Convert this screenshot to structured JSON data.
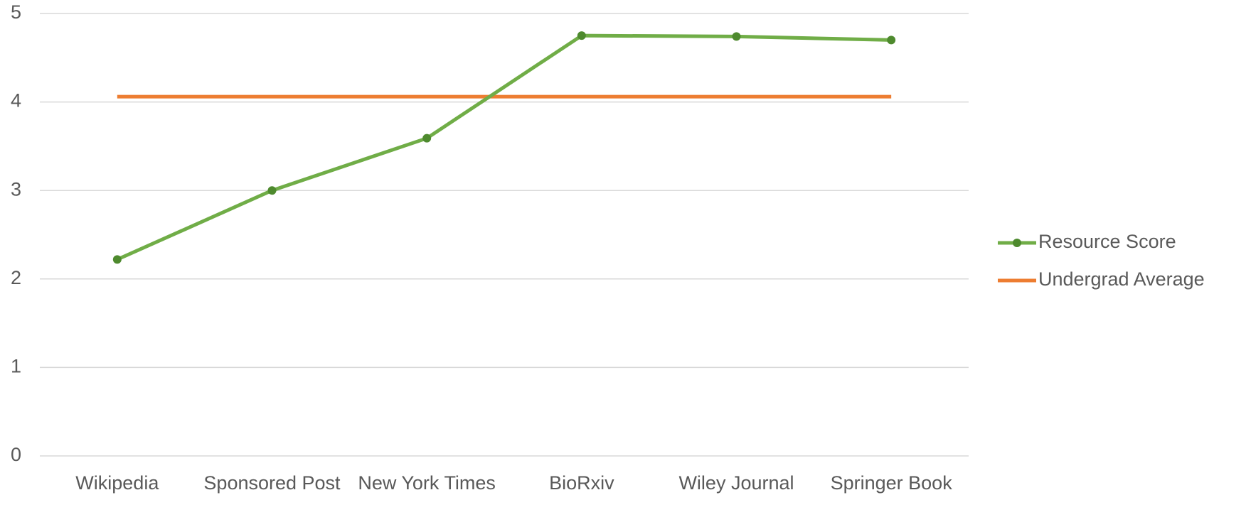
{
  "chart_data": {
    "type": "line",
    "categories": [
      "Wikipedia",
      "Sponsored Post",
      "New York Times",
      "BioRxiv",
      "Wiley Journal",
      "Springer Book"
    ],
    "series": [
      {
        "name": "Resource Score",
        "color": "#70ad47",
        "marker_color": "#4e8a2e",
        "values": [
          2.22,
          3.0,
          3.59,
          4.75,
          4.74,
          4.7
        ]
      },
      {
        "name": "Undergrad Average",
        "color": "#ed7d31",
        "values": [
          4.06,
          4.06,
          4.06,
          4.06,
          4.06,
          4.06
        ]
      }
    ],
    "ylim": [
      0,
      5
    ],
    "yticks": [
      0,
      1,
      2,
      3,
      4,
      5
    ],
    "grid": true,
    "legend": "right"
  }
}
